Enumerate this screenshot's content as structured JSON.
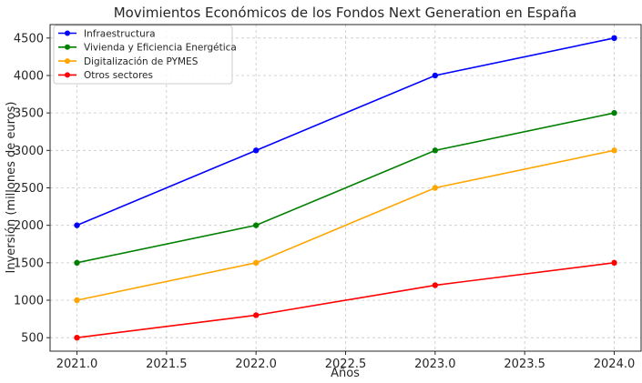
{
  "chart_data": {
    "type": "line",
    "title": "Movimientos Económicos de los Fondos Next Generation en España",
    "xlabel": "Años",
    "ylabel": "Inversión (millones de euros)",
    "x": [
      2021,
      2022,
      2023,
      2024
    ],
    "xlim": [
      2020.85,
      2024.15
    ],
    "ylim": [
      320,
      4680
    ],
    "xticks": [
      2021.0,
      2021.5,
      2022.0,
      2022.5,
      2023.0,
      2023.5,
      2024.0
    ],
    "xtick_labels": [
      "2021.0",
      "2021.5",
      "2022.0",
      "2022.5",
      "2023.0",
      "2023.5",
      "2024.0"
    ],
    "yticks": [
      500,
      1000,
      1500,
      2000,
      2500,
      3000,
      3500,
      4000,
      4500
    ],
    "ytick_labels": [
      "500",
      "1000",
      "1500",
      "2000",
      "2500",
      "3000",
      "3500",
      "4000",
      "4500"
    ],
    "grid": true,
    "legend_position": "top-left",
    "series": [
      {
        "name": "Infraestructura",
        "color": "#0000ff",
        "values": [
          2000,
          3000,
          4000,
          4500
        ]
      },
      {
        "name": "Vivienda y Eficiencia Energética",
        "color": "#008000",
        "values": [
          1500,
          2000,
          3000,
          3500
        ]
      },
      {
        "name": "Digitalización de PYMES",
        "color": "#ffa500",
        "values": [
          1000,
          1500,
          2500,
          3000
        ]
      },
      {
        "name": "Otros sectores",
        "color": "#ff0000",
        "values": [
          500,
          800,
          1200,
          1500
        ]
      }
    ]
  }
}
